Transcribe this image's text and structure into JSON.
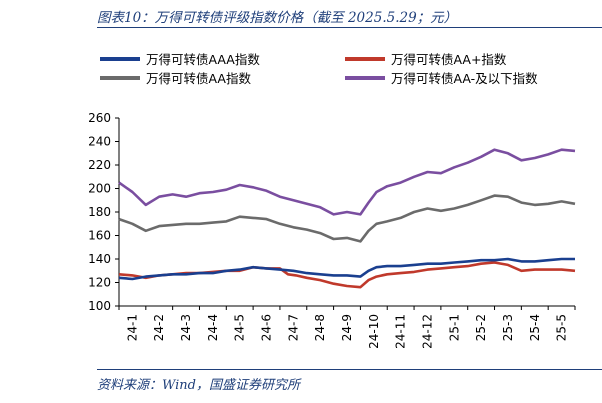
{
  "title": "图表10：万得可转债评级指数价格（截至 2025.5.29；元）",
  "source": "资料来源：Wind，国盛证券研究所",
  "chart_data": {
    "type": "line",
    "ylim": [
      100,
      260
    ],
    "yticks": [
      100,
      120,
      140,
      160,
      180,
      200,
      220,
      240,
      260
    ],
    "x_labels": [
      "24-1",
      "24-2",
      "24-3",
      "24-4",
      "24-5",
      "24-6",
      "24-7",
      "24-8",
      "24-9",
      "24-10",
      "24-11",
      "24-12",
      "25-1",
      "25-2",
      "25-3",
      "25-4",
      "25-5"
    ],
    "x_end": 17.0,
    "legend_position": "top",
    "grid": false,
    "series": [
      {
        "name": "万得可转债AAA指数",
        "color": "#1a3f8f",
        "points": [
          [
            0,
            124
          ],
          [
            0.5,
            123
          ],
          [
            1,
            125
          ],
          [
            1.5,
            126
          ],
          [
            2,
            127
          ],
          [
            2.5,
            127
          ],
          [
            3,
            128
          ],
          [
            3.5,
            128
          ],
          [
            4,
            130
          ],
          [
            4.5,
            131
          ],
          [
            5,
            133
          ],
          [
            5.5,
            132
          ],
          [
            6,
            131
          ],
          [
            6.5,
            130
          ],
          [
            7,
            128
          ],
          [
            7.5,
            127
          ],
          [
            8,
            126
          ],
          [
            8.5,
            126
          ],
          [
            9,
            125
          ],
          [
            9.3,
            130
          ],
          [
            9.6,
            133
          ],
          [
            10,
            134
          ],
          [
            10.5,
            134
          ],
          [
            11,
            135
          ],
          [
            11.5,
            136
          ],
          [
            12,
            136
          ],
          [
            12.5,
            137
          ],
          [
            13,
            138
          ],
          [
            13.5,
            139
          ],
          [
            14,
            139
          ],
          [
            14.5,
            140
          ],
          [
            15,
            138
          ],
          [
            15.5,
            138
          ],
          [
            16,
            139
          ],
          [
            16.5,
            140
          ],
          [
            17,
            140
          ]
        ]
      },
      {
        "name": "万得可转债AA+指数",
        "color": "#c0392b",
        "points": [
          [
            0,
            127
          ],
          [
            0.5,
            126
          ],
          [
            1,
            124
          ],
          [
            1.5,
            126
          ],
          [
            2,
            127
          ],
          [
            2.5,
            128
          ],
          [
            3,
            128
          ],
          [
            3.5,
            129
          ],
          [
            4,
            130
          ],
          [
            4.5,
            130
          ],
          [
            5,
            133
          ],
          [
            5.5,
            132
          ],
          [
            6,
            132
          ],
          [
            6.3,
            127
          ],
          [
            6.6,
            126
          ],
          [
            7,
            124
          ],
          [
            7.5,
            122
          ],
          [
            8,
            119
          ],
          [
            8.5,
            117
          ],
          [
            9,
            116
          ],
          [
            9.3,
            122
          ],
          [
            9.6,
            125
          ],
          [
            10,
            127
          ],
          [
            10.5,
            128
          ],
          [
            11,
            129
          ],
          [
            11.5,
            131
          ],
          [
            12,
            132
          ],
          [
            12.5,
            133
          ],
          [
            13,
            134
          ],
          [
            13.5,
            136
          ],
          [
            14,
            137
          ],
          [
            14.5,
            135
          ],
          [
            15,
            130
          ],
          [
            15.5,
            131
          ],
          [
            16,
            131
          ],
          [
            16.5,
            131
          ],
          [
            17,
            130
          ]
        ]
      },
      {
        "name": "万得可转债AA指数",
        "color": "#6b6b6b",
        "points": [
          [
            0,
            174
          ],
          [
            0.5,
            170
          ],
          [
            1,
            164
          ],
          [
            1.5,
            168
          ],
          [
            2,
            169
          ],
          [
            2.5,
            170
          ],
          [
            3,
            170
          ],
          [
            3.5,
            171
          ],
          [
            4,
            172
          ],
          [
            4.5,
            176
          ],
          [
            5,
            175
          ],
          [
            5.5,
            174
          ],
          [
            6,
            170
          ],
          [
            6.5,
            167
          ],
          [
            7,
            165
          ],
          [
            7.5,
            162
          ],
          [
            8,
            157
          ],
          [
            8.5,
            158
          ],
          [
            9,
            155
          ],
          [
            9.3,
            164
          ],
          [
            9.6,
            170
          ],
          [
            10,
            172
          ],
          [
            10.5,
            175
          ],
          [
            11,
            180
          ],
          [
            11.5,
            183
          ],
          [
            12,
            181
          ],
          [
            12.5,
            183
          ],
          [
            13,
            186
          ],
          [
            13.5,
            190
          ],
          [
            14,
            194
          ],
          [
            14.5,
            193
          ],
          [
            15,
            188
          ],
          [
            15.5,
            186
          ],
          [
            16,
            187
          ],
          [
            16.5,
            189
          ],
          [
            17,
            187
          ]
        ]
      },
      {
        "name": "万得可转债AA-及以下指数",
        "color": "#7a4ea0",
        "points": [
          [
            0,
            205
          ],
          [
            0.5,
            197
          ],
          [
            1,
            186
          ],
          [
            1.5,
            193
          ],
          [
            2,
            195
          ],
          [
            2.5,
            193
          ],
          [
            3,
            196
          ],
          [
            3.5,
            197
          ],
          [
            4,
            199
          ],
          [
            4.5,
            203
          ],
          [
            5,
            201
          ],
          [
            5.5,
            198
          ],
          [
            6,
            193
          ],
          [
            6.5,
            190
          ],
          [
            7,
            187
          ],
          [
            7.5,
            184
          ],
          [
            8,
            178
          ],
          [
            8.5,
            180
          ],
          [
            9,
            178
          ],
          [
            9.3,
            188
          ],
          [
            9.6,
            197
          ],
          [
            10,
            202
          ],
          [
            10.5,
            205
          ],
          [
            11,
            210
          ],
          [
            11.5,
            214
          ],
          [
            12,
            213
          ],
          [
            12.5,
            218
          ],
          [
            13,
            222
          ],
          [
            13.5,
            227
          ],
          [
            14,
            233
          ],
          [
            14.5,
            230
          ],
          [
            15,
            224
          ],
          [
            15.5,
            226
          ],
          [
            16,
            229
          ],
          [
            16.5,
            233
          ],
          [
            17,
            232
          ]
        ]
      }
    ]
  }
}
